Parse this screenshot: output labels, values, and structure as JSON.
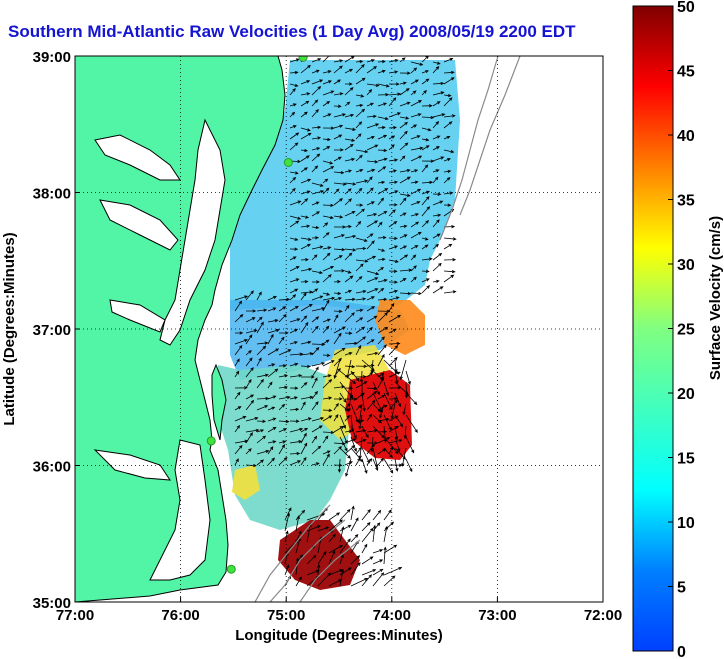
{
  "title": "Southern Mid-Atlantic Raw Velocities (1 Day Avg) 2008/05/19 2200 EDT",
  "map": {
    "x_axis": {
      "label": "Longitude (Degrees:Minutes)",
      "ticks": [
        "77:00",
        "76:00",
        "75:00",
        "74:00",
        "73:00",
        "72:00"
      ],
      "range": [
        -77,
        -72
      ]
    },
    "y_axis": {
      "label": "Latitude (Degrees:Minutes)",
      "ticks": [
        "39:00",
        "38:00",
        "37:00",
        "36:00",
        "35:00"
      ],
      "range": [
        35,
        39
      ]
    },
    "grid": "dotted",
    "colors": {
      "land": "#52f5a6",
      "coast": "#000000",
      "bathymetry": "#8a8a8a",
      "station": "#3fe23f"
    },
    "stations": [
      {
        "lon": -74.84,
        "lat": 38.99
      },
      {
        "lon": -74.98,
        "lat": 38.22
      },
      {
        "lon": -75.71,
        "lat": 36.18
      },
      {
        "lon": -75.52,
        "lat": 35.24
      }
    ]
  },
  "colorbar": {
    "label": "Surface Velocity (cm/s)",
    "ticks": [
      "50",
      "45",
      "40",
      "35",
      "30",
      "25",
      "20",
      "15",
      "10",
      "5",
      "0"
    ],
    "range": [
      0,
      50
    ],
    "colormap": "jet"
  }
}
